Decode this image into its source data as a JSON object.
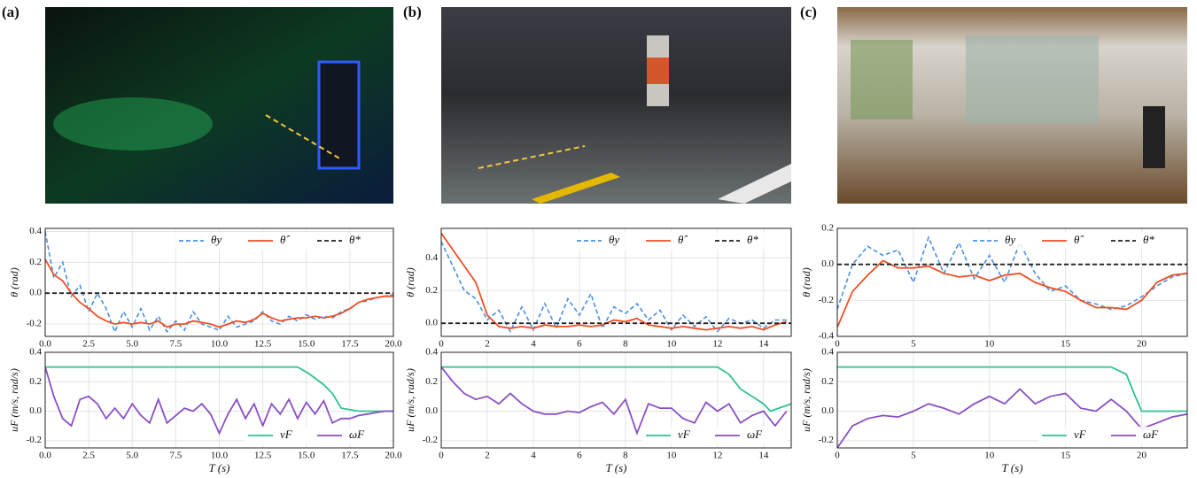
{
  "panels": [
    {
      "label": "(a)"
    },
    {
      "label": "(b)"
    },
    {
      "label": "(c)"
    }
  ],
  "chart_data": [
    {
      "type": "line",
      "ylabel": "θ (rad)",
      "legend": "upper right",
      "grid": true,
      "xlim": [
        0,
        20
      ],
      "xticks": [
        {
          "value": 0,
          "label": "0.0"
        },
        2.5,
        {
          "value": 5,
          "label": "5.0"
        },
        7.5,
        {
          "value": 10,
          "label": "10.0"
        },
        12.5,
        {
          "value": 15,
          "label": "15.0"
        },
        17.5,
        {
          "value": 20,
          "label": "20.0"
        }
      ],
      "ylim": [
        -0.28,
        0.42
      ],
      "yticks": [
        -0.2,
        {
          "value": 0,
          "label": "0.0"
        },
        0.2,
        0.4
      ],
      "series": [
        {
          "name": "θy",
          "color": "#4a90e2",
          "line_style": "dashed",
          "x": [
            0,
            0.5,
            1,
            1.5,
            2,
            2.5,
            3,
            3.5,
            4,
            4.5,
            5,
            5.5,
            6,
            6.5,
            7,
            7.5,
            8,
            8.5,
            9,
            9.5,
            10,
            10.5,
            11,
            11.5,
            12,
            12.5,
            13,
            13.5,
            14,
            14.5,
            15,
            15.5,
            16,
            16.5,
            17,
            17.5,
            18,
            18.5,
            19,
            19.5,
            20
          ],
          "values": [
            0.4,
            0.1,
            0.2,
            -0.02,
            0.05,
            -0.12,
            0.0,
            -0.1,
            -0.25,
            -0.12,
            -0.22,
            -0.1,
            -0.24,
            -0.15,
            -0.25,
            -0.18,
            -0.24,
            -0.12,
            -0.2,
            -0.22,
            -0.24,
            -0.15,
            -0.22,
            -0.2,
            -0.18,
            -0.12,
            -0.18,
            -0.2,
            -0.15,
            -0.18,
            -0.14,
            -0.17,
            -0.15,
            -0.16,
            -0.12,
            -0.1,
            -0.06,
            -0.05,
            -0.03,
            -0.02,
            -0.01
          ]
        },
        {
          "name": "θ̂",
          "color": "#f04e23",
          "line_style": "solid",
          "x": [
            0,
            0.5,
            1,
            1.5,
            2,
            2.5,
            3,
            3.5,
            4,
            4.5,
            5,
            5.5,
            6,
            6.5,
            7,
            7.5,
            8,
            8.5,
            9,
            9.5,
            10,
            10.5,
            11,
            11.5,
            12,
            12.5,
            13,
            13.5,
            14,
            14.5,
            15,
            15.5,
            16,
            16.5,
            17,
            17.5,
            18,
            18.5,
            19,
            19.5,
            20
          ],
          "values": [
            0.22,
            0.12,
            0.08,
            0.0,
            -0.06,
            -0.1,
            -0.15,
            -0.18,
            -0.2,
            -0.19,
            -0.2,
            -0.19,
            -0.2,
            -0.18,
            -0.22,
            -0.2,
            -0.2,
            -0.18,
            -0.19,
            -0.2,
            -0.22,
            -0.2,
            -0.18,
            -0.19,
            -0.17,
            -0.13,
            -0.16,
            -0.18,
            -0.17,
            -0.16,
            -0.16,
            -0.15,
            -0.16,
            -0.15,
            -0.13,
            -0.1,
            -0.06,
            -0.04,
            -0.03,
            -0.02,
            -0.02
          ]
        },
        {
          "name": "θ*",
          "color": "#222222",
          "line_style": "dashed",
          "x": [
            0,
            20
          ],
          "values": [
            0,
            0
          ]
        }
      ]
    },
    {
      "type": "line",
      "ylabel": "uF (m/s, rad/s)",
      "xlabel": "T (s)",
      "legend": "lower right",
      "grid": true,
      "xlim": [
        0,
        20
      ],
      "xticks": [
        {
          "value": 0,
          "label": "0.0"
        },
        2.5,
        {
          "value": 5,
          "label": "5.0"
        },
        7.5,
        {
          "value": 10,
          "label": "10.0"
        },
        12.5,
        {
          "value": 15,
          "label": "15.0"
        },
        17.5,
        {
          "value": 20,
          "label": "20.0"
        }
      ],
      "ylim": [
        -0.25,
        0.4
      ],
      "yticks": [
        -0.2,
        {
          "value": 0,
          "label": "0.0"
        },
        0.2,
        0.4
      ],
      "series": [
        {
          "name": "vF",
          "color": "#2ec28e",
          "line_style": "solid",
          "x": [
            0,
            14.5,
            15.2,
            16,
            16.5,
            17,
            18,
            20
          ],
          "values": [
            0.3,
            0.3,
            0.25,
            0.18,
            0.12,
            0.02,
            0.0,
            0.0
          ]
        },
        {
          "name": "ωF",
          "color": "#8a4fc4",
          "line_style": "solid",
          "x": [
            0,
            0.5,
            1,
            1.5,
            2,
            2.5,
            3,
            3.5,
            4,
            4.5,
            5,
            5.5,
            6,
            6.5,
            7,
            7.5,
            8,
            8.5,
            9,
            9.5,
            10,
            10.5,
            11,
            11.5,
            12,
            12.5,
            13,
            13.5,
            14,
            14.5,
            15,
            15.5,
            16,
            16.5,
            17,
            17.5,
            18,
            18.5,
            19,
            19.5,
            20
          ],
          "values": [
            0.3,
            0.1,
            -0.05,
            -0.1,
            0.08,
            0.1,
            0.05,
            -0.05,
            0.02,
            -0.05,
            0.05,
            -0.03,
            -0.08,
            0.08,
            -0.08,
            -0.03,
            0.02,
            0.0,
            0.05,
            -0.02,
            -0.15,
            -0.02,
            0.08,
            -0.05,
            0.05,
            -0.1,
            0.05,
            -0.02,
            0.08,
            -0.05,
            0.06,
            -0.02,
            0.07,
            -0.08,
            -0.05,
            -0.05,
            -0.03,
            -0.02,
            -0.01,
            0.0,
            0.0
          ]
        }
      ]
    },
    {
      "type": "line",
      "ylabel": "θ (rad)",
      "legend": "upper right",
      "grid": true,
      "xlim": [
        0,
        15.2
      ],
      "xticks": [
        0,
        2,
        4,
        6,
        8,
        10,
        12,
        14
      ],
      "ylim": [
        -0.08,
        0.58
      ],
      "yticks": [
        {
          "value": 0,
          "label": "0.0"
        },
        0.2,
        0.4
      ],
      "series": [
        {
          "name": "θy",
          "color": "#4a90e2",
          "line_style": "dashed",
          "x": [
            0,
            0.5,
            1,
            1.5,
            2,
            2.5,
            3,
            3.5,
            4,
            4.5,
            5,
            5.5,
            6,
            6.5,
            7,
            7.5,
            8,
            8.5,
            9,
            9.5,
            10,
            10.5,
            11,
            11.5,
            12,
            12.5,
            13,
            13.5,
            14,
            14.5,
            15
          ],
          "values": [
            0.5,
            0.35,
            0.2,
            0.15,
            0.02,
            0.08,
            -0.05,
            0.1,
            -0.04,
            0.12,
            -0.03,
            0.15,
            0.05,
            0.18,
            -0.03,
            0.1,
            0.06,
            0.12,
            0.02,
            0.08,
            -0.04,
            0.05,
            -0.02,
            0.04,
            -0.05,
            0.03,
            0.0,
            0.02,
            -0.03,
            0.02,
            0.02
          ]
        },
        {
          "name": "θ̂",
          "color": "#f04e23",
          "line_style": "solid",
          "x": [
            0,
            0.5,
            1,
            1.5,
            2,
            2.5,
            3,
            3.5,
            4,
            4.5,
            5,
            5.5,
            6,
            6.5,
            7,
            7.5,
            8,
            8.5,
            9,
            9.5,
            10,
            10.5,
            11,
            11.5,
            12,
            12.5,
            13,
            13.5,
            14,
            14.5,
            15
          ],
          "values": [
            0.55,
            0.45,
            0.35,
            0.25,
            0.05,
            -0.02,
            -0.03,
            -0.02,
            -0.03,
            -0.01,
            -0.02,
            -0.02,
            -0.01,
            -0.02,
            -0.01,
            0.02,
            0.01,
            0.03,
            -0.01,
            -0.02,
            -0.03,
            -0.02,
            -0.03,
            -0.04,
            -0.03,
            -0.02,
            -0.03,
            -0.02,
            -0.04,
            -0.01,
            0.01
          ]
        },
        {
          "name": "θ*",
          "color": "#222222",
          "line_style": "dashed",
          "x": [
            0,
            15.2
          ],
          "values": [
            0,
            0
          ]
        }
      ]
    },
    {
      "type": "line",
      "ylabel": "uF (m/s, rad/s)",
      "xlabel": "T (s)",
      "legend": "lower right",
      "grid": true,
      "xlim": [
        0,
        15.2
      ],
      "xticks": [
        0,
        2,
        4,
        6,
        8,
        10,
        12,
        14
      ],
      "ylim": [
        -0.25,
        0.4
      ],
      "yticks": [
        -0.2,
        {
          "value": 0,
          "label": "0.0"
        },
        0.2,
        0.4
      ],
      "series": [
        {
          "name": "vF",
          "color": "#2ec28e",
          "line_style": "solid",
          "x": [
            0,
            12,
            12.5,
            13,
            13.5,
            14,
            14.3,
            15.2
          ],
          "values": [
            0.3,
            0.3,
            0.25,
            0.15,
            0.1,
            0.05,
            0.0,
            0.05
          ]
        },
        {
          "name": "ωF",
          "color": "#8a4fc4",
          "line_style": "solid",
          "x": [
            0,
            0.5,
            1,
            1.5,
            2,
            2.5,
            3,
            3.5,
            4,
            4.5,
            5,
            5.5,
            6,
            6.5,
            7,
            7.5,
            8,
            8.5,
            9,
            9.5,
            10,
            10.5,
            11,
            11.5,
            12,
            12.5,
            13,
            13.5,
            14,
            14.5,
            15
          ],
          "values": [
            0.3,
            0.2,
            0.12,
            0.08,
            0.1,
            0.05,
            0.12,
            0.05,
            0.0,
            -0.02,
            -0.02,
            0.0,
            -0.01,
            0.03,
            0.06,
            -0.02,
            0.08,
            -0.15,
            0.05,
            0.02,
            0.02,
            -0.05,
            -0.08,
            0.06,
            0.0,
            0.05,
            -0.08,
            -0.03,
            0.0,
            -0.1,
            0.0
          ]
        }
      ]
    },
    {
      "type": "line",
      "ylabel": "θ (rad)",
      "legend": "upper right",
      "grid": true,
      "xlim": [
        0,
        23
      ],
      "xticks": [
        0,
        5,
        10,
        15,
        20
      ],
      "ylim": [
        -0.4,
        0.2
      ],
      "yticks": [
        -0.4,
        -0.2,
        {
          "value": 0,
          "label": "0.0"
        },
        0.2
      ],
      "series": [
        {
          "name": "θy",
          "color": "#4a90e2",
          "line_style": "dashed",
          "x": [
            0,
            1,
            2,
            3,
            4,
            5,
            6,
            7,
            8,
            9,
            10,
            11,
            12,
            13,
            14,
            15,
            16,
            17,
            18,
            19,
            20,
            21,
            22,
            23
          ],
          "values": [
            -0.25,
            0.0,
            0.1,
            0.05,
            0.08,
            -0.1,
            0.15,
            -0.05,
            0.12,
            -0.08,
            0.05,
            -0.1,
            0.12,
            -0.05,
            -0.15,
            -0.12,
            -0.2,
            -0.22,
            -0.25,
            -0.23,
            -0.18,
            -0.12,
            -0.07,
            -0.05
          ]
        },
        {
          "name": "θ̂",
          "color": "#f04e23",
          "line_style": "solid",
          "x": [
            0,
            1,
            2,
            3,
            4,
            5,
            6,
            7,
            8,
            9,
            10,
            11,
            12,
            13,
            14,
            15,
            16,
            17,
            18,
            19,
            20,
            21,
            22,
            23
          ],
          "values": [
            -0.35,
            -0.15,
            -0.06,
            0.02,
            -0.02,
            -0.02,
            -0.01,
            -0.05,
            -0.07,
            -0.06,
            -0.09,
            -0.06,
            -0.05,
            -0.1,
            -0.13,
            -0.15,
            -0.2,
            -0.24,
            -0.24,
            -0.25,
            -0.2,
            -0.1,
            -0.06,
            -0.05
          ]
        },
        {
          "name": "θ*",
          "color": "#222222",
          "line_style": "dashed",
          "x": [
            0,
            23
          ],
          "values": [
            0,
            0
          ]
        }
      ]
    },
    {
      "type": "line",
      "ylabel": "uF (m/s, rad/s)",
      "xlabel": "T (s)",
      "legend": "lower right",
      "grid": true,
      "xlim": [
        0,
        23
      ],
      "xticks": [
        0,
        5,
        10,
        15,
        20
      ],
      "ylim": [
        -0.25,
        0.4
      ],
      "yticks": [
        -0.2,
        {
          "value": 0,
          "label": "0.0"
        },
        0.2,
        0.4
      ],
      "series": [
        {
          "name": "vF",
          "color": "#2ec28e",
          "line_style": "solid",
          "x": [
            0,
            18,
            19,
            19.5,
            20,
            23
          ],
          "values": [
            0.3,
            0.3,
            0.25,
            0.12,
            0.0,
            0.0
          ]
        },
        {
          "name": "ωF",
          "color": "#8a4fc4",
          "line_style": "solid",
          "x": [
            0,
            1,
            2,
            3,
            4,
            5,
            6,
            7,
            8,
            9,
            10,
            11,
            12,
            13,
            14,
            15,
            16,
            17,
            18,
            19,
            20,
            21,
            22,
            23
          ],
          "values": [
            -0.25,
            -0.1,
            -0.05,
            -0.03,
            -0.04,
            0.0,
            0.05,
            0.02,
            -0.02,
            0.05,
            0.1,
            0.05,
            0.15,
            0.05,
            0.1,
            0.12,
            0.02,
            0.0,
            0.08,
            0.0,
            -0.12,
            -0.08,
            -0.04,
            -0.02
          ]
        }
      ]
    }
  ]
}
